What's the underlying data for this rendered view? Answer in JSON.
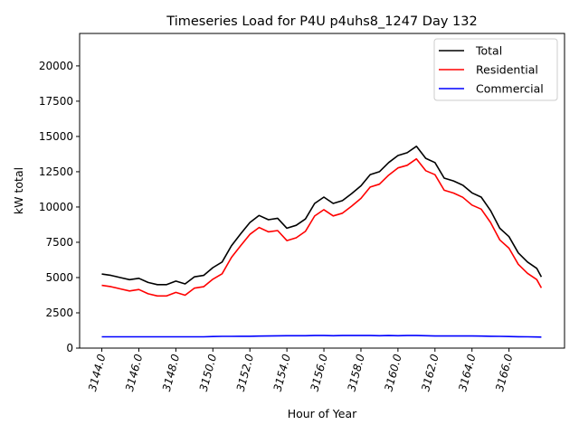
{
  "chart_data": {
    "type": "line",
    "title": "Timeseries Load for P4U p4uhs8_1247  Day 132",
    "xlabel": "Hour of Year",
    "ylabel": "kW total",
    "xlim": [
      3142.8,
      3169.0
    ],
    "ylim": [
      0,
      22300
    ],
    "xticks": [
      3144,
      3146,
      3148,
      3150,
      3152,
      3154,
      3156,
      3158,
      3160,
      3162,
      3164,
      3166
    ],
    "xtick_labels": [
      "3144.0",
      "3146.0",
      "3148.0",
      "3150.0",
      "3152.0",
      "3154.0",
      "3156.0",
      "3158.0",
      "3160.0",
      "3162.0",
      "3164.0",
      "3166.0"
    ],
    "yticks": [
      0,
      2500,
      5000,
      7500,
      10000,
      12500,
      15000,
      17500,
      20000
    ],
    "ytick_labels": [
      "0",
      "2500",
      "5000",
      "7500",
      "10000",
      "12500",
      "15000",
      "17500",
      "20000"
    ],
    "legend_position": "top-right",
    "x": [
      3144,
      3144.5,
      3145,
      3145.5,
      3146,
      3146.5,
      3147,
      3147.5,
      3148,
      3148.5,
      3149,
      3149.5,
      3150,
      3150.5,
      3151,
      3151.5,
      3152,
      3152.5,
      3153,
      3153.5,
      3154,
      3154.5,
      3155,
      3155.5,
      3156,
      3156.5,
      3157,
      3157.5,
      3158,
      3158.5,
      3159,
      3159.5,
      3160,
      3160.5,
      3161,
      3161.5,
      3162,
      3162.5,
      3163,
      3163.5,
      3164,
      3164.5,
      3165,
      3165.5,
      3166,
      3166.5,
      3167,
      3167.5,
      3167.75
    ],
    "series": [
      {
        "name": "Total",
        "color": "#000000",
        "values": [
          5250,
          5150,
          5000,
          4850,
          4950,
          4650,
          4500,
          4500,
          4750,
          4550,
          5050,
          5150,
          5700,
          6100,
          7250,
          8100,
          8900,
          9400,
          9100,
          9200,
          8500,
          8700,
          9150,
          10250,
          10700,
          10250,
          10450,
          10950,
          11500,
          12300,
          12500,
          13150,
          13650,
          13850,
          14300,
          13450,
          13150,
          12050,
          11850,
          11550,
          11000,
          10700,
          9750,
          8500,
          7900,
          6750,
          6100,
          5650,
          5050
        ]
      },
      {
        "name": "Residential",
        "color": "#ff0000",
        "values": [
          4450,
          4350,
          4200,
          4050,
          4150,
          3850,
          3700,
          3700,
          3950,
          3750,
          4250,
          4350,
          4880,
          5270,
          6420,
          7260,
          8060,
          8550,
          8240,
          8330,
          7620,
          7820,
          8270,
          9360,
          9810,
          9370,
          9560,
          10060,
          10610,
          11410,
          11620,
          12260,
          12770,
          12960,
          13410,
          12570,
          12290,
          11190,
          10990,
          10690,
          10140,
          9850,
          8910,
          7670,
          7080,
          5940,
          5300,
          4860,
          4270
        ]
      },
      {
        "name": "Commercial",
        "color": "#0000ff",
        "values": [
          800,
          800,
          800,
          800,
          800,
          800,
          800,
          800,
          800,
          800,
          800,
          800,
          820,
          830,
          830,
          840,
          840,
          850,
          860,
          870,
          880,
          880,
          880,
          890,
          890,
          880,
          890,
          890,
          890,
          890,
          880,
          890,
          880,
          890,
          890,
          880,
          860,
          860,
          860,
          860,
          860,
          850,
          840,
          830,
          820,
          810,
          800,
          790,
          780
        ]
      }
    ]
  }
}
